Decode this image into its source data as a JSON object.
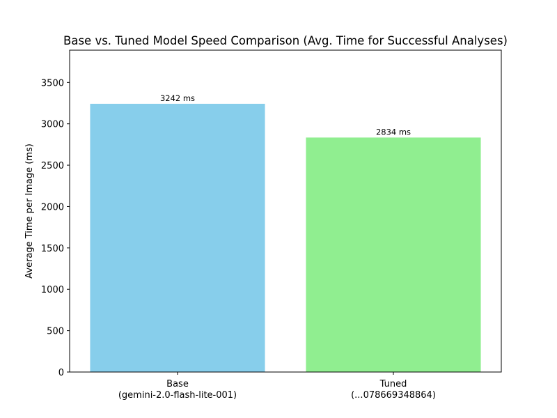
{
  "chart_data": {
    "type": "bar",
    "title": "Base vs. Tuned Model Speed Comparison (Avg. Time for Successful Analyses)",
    "xlabel": "",
    "ylabel": "Average Time per Image (ms)",
    "categories": [
      [
        "Base",
        "(gemini-2.0-flash-lite-001)"
      ],
      [
        "Tuned",
        "(...078669348864)"
      ]
    ],
    "values": [
      3242,
      2834
    ],
    "data_labels": [
      "3242 ms",
      "2834 ms"
    ],
    "colors": [
      "#87ceeb",
      "#90ee90"
    ],
    "ylim": [
      0,
      3890
    ],
    "yticks": [
      0,
      500,
      1000,
      1500,
      2000,
      2500,
      3000,
      3500
    ],
    "grid": false,
    "legend": "none"
  }
}
